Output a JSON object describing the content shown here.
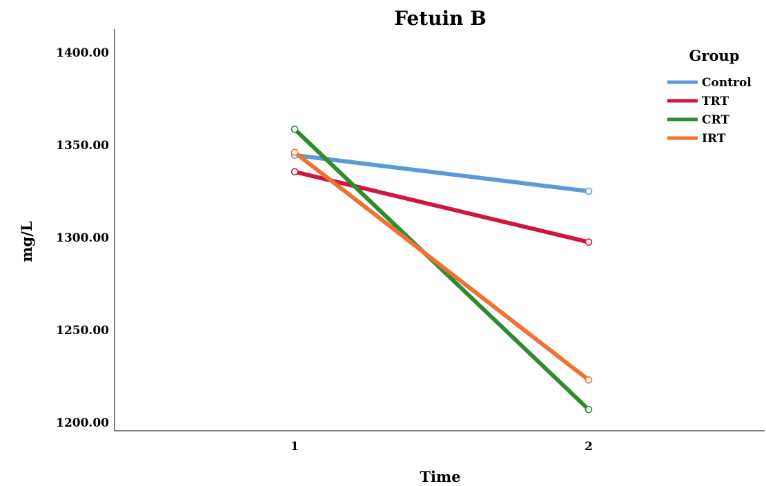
{
  "chart_data": {
    "type": "line",
    "title": "Fetuin B",
    "xlabel": "Time",
    "ylabel": "mg/L",
    "categories": [
      "1",
      "2"
    ],
    "yticks": [
      "1200.00",
      "1250.00",
      "1300.00",
      "1350.00",
      "1400.00"
    ],
    "ylim": [
      1195,
      1412
    ],
    "legend_title": "Group",
    "legend_position": "top-right",
    "grid": false,
    "series": [
      {
        "name": "Control",
        "values": [
          1344.5,
          1325.0
        ],
        "color": "#5b9bd5"
      },
      {
        "name": "TRT",
        "values": [
          1335.5,
          1297.5
        ],
        "color": "#d2153d"
      },
      {
        "name": "CRT",
        "values": [
          1358.5,
          1207.0
        ],
        "color": "#2e8b2e"
      },
      {
        "name": "IRT",
        "values": [
          1346.0,
          1223.0
        ],
        "color": "#f07132"
      }
    ]
  }
}
